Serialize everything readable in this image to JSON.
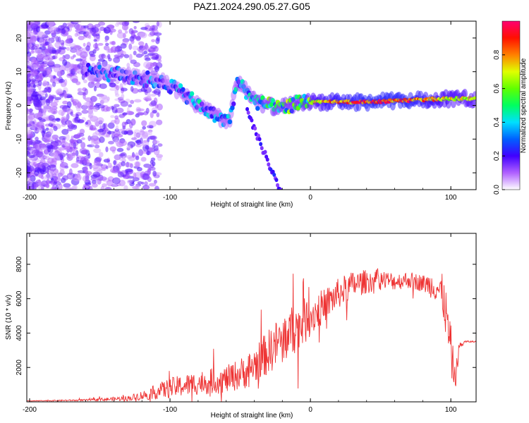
{
  "figure": {
    "title": "PAZ1.2024.290.05.27.G05"
  },
  "chart_data": [
    {
      "type": "heatmap",
      "xlabel": "Height of straight line (km)",
      "ylabel": "Frequency (Hz)",
      "xlim": [
        -202,
        118
      ],
      "ylim": [
        -25,
        25
      ],
      "x_ticks": [
        "-200",
        "-100",
        "0",
        "100"
      ],
      "y_ticks": [
        "-20",
        "-10",
        "0",
        "10",
        "20"
      ],
      "colorbar": {
        "label": "Normalized spectral amplitude",
        "range": [
          0,
          1
        ],
        "ticks": [
          "0.0",
          "0.2",
          "0.4",
          "0.6",
          "0.8"
        ],
        "colors": [
          "#ffffff",
          "#c8a0ff",
          "#7a00ff",
          "#0000ff",
          "#00d0ff",
          "#00ff00",
          "#ffff00",
          "#ff8000",
          "#ff0000",
          "#ff0066"
        ]
      },
      "ridge": {
        "description_points_x": [
          -155,
          -135,
          -120,
          -105,
          -92,
          -80,
          -68,
          -58,
          -52,
          -45,
          -38,
          -30,
          -22,
          -15,
          -5,
          10,
          40,
          70,
          95,
          118
        ],
        "description_points_y": [
          10,
          9,
          8,
          7,
          4,
          0,
          -3,
          -5,
          7,
          4,
          1,
          0,
          -1,
          0,
          1,
          1,
          1,
          1.5,
          2,
          2
        ],
        "intensity": [
          0.3,
          0.3,
          0.32,
          0.35,
          0.4,
          0.4,
          0.4,
          0.4,
          0.45,
          0.45,
          0.5,
          0.55,
          0.55,
          0.6,
          0.65,
          0.85,
          0.95,
          0.95,
          0.8,
          0.7
        ]
      }
    },
    {
      "type": "line",
      "xlabel": "Height of straight line (km)",
      "ylabel": "SNR (10 * v/v)",
      "xlim": [
        -202,
        118
      ],
      "ylim": [
        0,
        9800
      ],
      "x_ticks": [
        "-200",
        "-100",
        "0",
        "100"
      ],
      "y_ticks": [
        "2000",
        "4000",
        "6000",
        "8000"
      ],
      "color": "#ee3333",
      "envelope_x": [
        -202,
        -160,
        -130,
        -118,
        -100,
        -80,
        -60,
        -45,
        -35,
        -25,
        -15,
        -5,
        0,
        10,
        20,
        30,
        40,
        50,
        60,
        70,
        80,
        90,
        95,
        100,
        103,
        106,
        110,
        118
      ],
      "envelope_y": [
        50,
        100,
        200,
        400,
        800,
        1100,
        1300,
        1800,
        2500,
        3300,
        4000,
        4600,
        5000,
        5600,
        6300,
        6800,
        7000,
        7100,
        7000,
        7100,
        6900,
        6700,
        6000,
        3000,
        1200,
        3200,
        3500,
        3500
      ],
      "noise_y": [
        20,
        50,
        150,
        300,
        600,
        700,
        800,
        1000,
        1200,
        1400,
        1500,
        1400,
        1200,
        1000,
        900,
        800,
        700,
        600,
        500,
        500,
        500,
        900,
        1400,
        1500,
        800,
        300,
        60,
        40
      ]
    }
  ]
}
